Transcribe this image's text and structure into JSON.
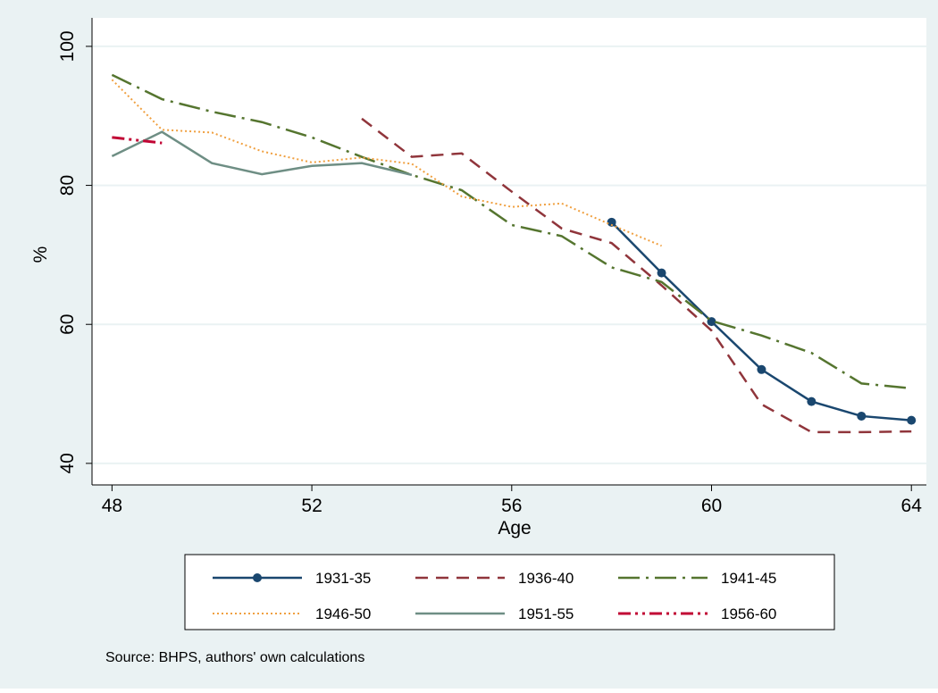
{
  "chart_data": {
    "type": "line",
    "x_label": "Age",
    "y_label": "%",
    "note": "Source: BHPS, authors' own calculations",
    "x": [
      48,
      49,
      50,
      51,
      52,
      53,
      54,
      55,
      56,
      57,
      58,
      59,
      60,
      61,
      62,
      63,
      64
    ],
    "series": [
      {
        "name": "1931-35",
        "color": "#1a476f",
        "values": [
          null,
          null,
          null,
          null,
          null,
          null,
          null,
          null,
          null,
          null,
          74.7,
          67.4,
          60.4,
          53.5,
          48.9,
          46.8,
          46.2
        ]
      },
      {
        "name": "1936-40",
        "color": "#90353b",
        "values": [
          null,
          null,
          null,
          null,
          null,
          89.6,
          84.1,
          84.6,
          79.1,
          73.8,
          71.7,
          65.6,
          59.1,
          48.5,
          44.5,
          44.5,
          44.6
        ]
      },
      {
        "name": "1941-45",
        "color": "#55752f",
        "values": [
          95.9,
          92.4,
          90.6,
          89.1,
          86.9,
          84.1,
          81.5,
          79.3,
          74.3,
          72.7,
          68.2,
          66.1,
          60.5,
          58.4,
          55.9,
          51.5,
          50.8
        ]
      },
      {
        "name": "1946-50",
        "color": "#f0a040",
        "values": [
          95.2,
          88.0,
          87.6,
          84.9,
          83.3,
          84.0,
          83.1,
          78.4,
          76.9,
          77.4,
          74.3,
          71.3,
          null,
          null,
          null,
          null,
          null
        ]
      },
      {
        "name": "1951-55",
        "color": "#6e8e84",
        "values": [
          84.2,
          87.7,
          83.2,
          81.6,
          82.8,
          83.2,
          81.5,
          null,
          null,
          null,
          null,
          null,
          null,
          null,
          null,
          null,
          null
        ]
      },
      {
        "name": "1956-60",
        "color": "#c10534",
        "values": [
          86.9,
          86.1,
          null,
          null,
          null,
          null,
          null,
          null,
          null,
          null,
          null,
          null,
          null,
          null,
          null,
          null,
          null
        ]
      }
    ],
    "xlim": [
      47.6,
      64.3
    ],
    "ylim": [
      36.9,
      104.1
    ],
    "xticks": [
      48,
      52,
      56,
      60,
      64
    ],
    "yticks": [
      40,
      60,
      80,
      100
    ],
    "grid": true
  }
}
